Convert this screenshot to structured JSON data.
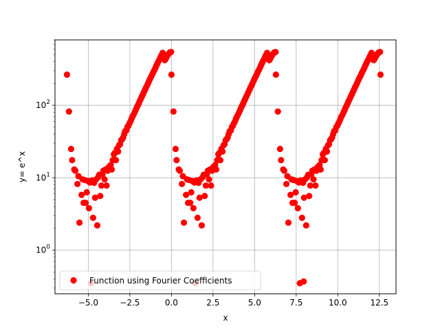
{
  "chart_data": {
    "type": "scatter",
    "title": "",
    "xlabel": "x",
    "ylabel": "y= e^x",
    "xlim": [
      -7.0,
      13.5
    ],
    "ylim": [
      0.25,
      800
    ],
    "yscale": "log",
    "grid": true,
    "x_ticks": [
      {
        "value": -5.0,
        "label": "−5.0"
      },
      {
        "value": -2.5,
        "label": "−2.5"
      },
      {
        "value": 0.0,
        "label": "0.0"
      },
      {
        "value": 2.5,
        "label": "2.5"
      },
      {
        "value": 5.0,
        "label": "5.0"
      },
      {
        "value": 7.5,
        "label": "7.5"
      },
      {
        "value": 10.0,
        "label": "10.0"
      },
      {
        "value": 12.5,
        "label": "12.5"
      }
    ],
    "y_ticks": [
      {
        "value": 1,
        "base": "10",
        "exp": "0"
      },
      {
        "value": 10,
        "base": "10",
        "exp": "1"
      },
      {
        "value": 100,
        "base": "10",
        "exp": "2"
      }
    ],
    "legend": {
      "position": "lower-left"
    },
    "series": [
      {
        "name": "Function using Fourier Coefficients",
        "color": "#ff0000",
        "marker": "circle",
        "points": [
          [
            -6.28,
            265
          ],
          [
            -6.16,
            82
          ],
          [
            -6.03,
            25
          ],
          [
            -5.97,
            17.5
          ],
          [
            -5.84,
            13
          ],
          [
            -5.78,
            12.5
          ],
          [
            -5.65,
            8.2
          ],
          [
            -5.59,
            10.5
          ],
          [
            -5.53,
            2.4
          ],
          [
            -5.4,
            5.8
          ],
          [
            -5.34,
            9.5
          ],
          [
            -5.28,
            4.5
          ],
          [
            -5.21,
            9.3
          ],
          [
            -5.15,
            4.5
          ],
          [
            -5.09,
            6.3
          ],
          [
            -5.03,
            9
          ],
          [
            -4.96,
            3.8
          ],
          [
            -4.9,
            8.6
          ],
          [
            -4.84,
            0.35
          ],
          [
            -4.78,
            9.2
          ],
          [
            -4.71,
            2.8
          ],
          [
            -4.65,
            8.5
          ],
          [
            -4.59,
            5.3
          ],
          [
            -4.53,
            9.5
          ],
          [
            -4.46,
            2.2
          ],
          [
            -4.4,
            10.2
          ],
          [
            -4.34,
            11
          ],
          [
            -4.28,
            5.6
          ],
          [
            -4.21,
            7.8
          ],
          [
            -4.15,
            11.2
          ],
          [
            -4.09,
            12.5
          ],
          [
            -4.02,
            9.5
          ],
          [
            -3.96,
            13
          ],
          [
            -3.9,
            7.8
          ],
          [
            -3.84,
            12.5
          ],
          [
            -3.78,
            14
          ],
          [
            -3.71,
            13.5
          ],
          [
            -3.65,
            15
          ],
          [
            -3.59,
            13
          ],
          [
            -3.53,
            17.5
          ],
          [
            -3.46,
            21
          ],
          [
            -3.4,
            22
          ],
          [
            -3.34,
            17.5
          ],
          [
            -3.28,
            25
          ],
          [
            -3.21,
            23
          ],
          [
            -3.15,
            28
          ],
          [
            -3.09,
            29
          ],
          [
            -3.02,
            33
          ],
          [
            -2.96,
            34
          ],
          [
            -2.9,
            36
          ],
          [
            -2.84,
            40
          ],
          [
            -2.78,
            44
          ],
          [
            -2.71,
            45
          ],
          [
            -2.65,
            50
          ],
          [
            -2.59,
            52
          ],
          [
            -2.53,
            56
          ],
          [
            -2.46,
            60
          ],
          [
            -2.4,
            65
          ],
          [
            -2.34,
            70
          ],
          [
            -2.28,
            74
          ],
          [
            -2.21,
            80
          ],
          [
            -2.15,
            86
          ],
          [
            -2.09,
            93
          ],
          [
            -2.02,
            100
          ],
          [
            -1.96,
            107
          ],
          [
            -1.9,
            115
          ],
          [
            -1.84,
            123
          ],
          [
            -1.78,
            132
          ],
          [
            -1.71,
            142
          ],
          [
            -1.65,
            153
          ],
          [
            -1.59,
            164
          ],
          [
            -1.53,
            176
          ],
          [
            -1.46,
            189
          ],
          [
            -1.4,
            203
          ],
          [
            -1.34,
            218
          ],
          [
            -1.28,
            233
          ],
          [
            -1.21,
            250
          ],
          [
            -1.15,
            268
          ],
          [
            -1.09,
            288
          ],
          [
            -1.02,
            308
          ],
          [
            -0.96,
            330
          ],
          [
            -0.9,
            355
          ],
          [
            -0.84,
            380
          ],
          [
            -0.78,
            405
          ],
          [
            -0.71,
            435
          ],
          [
            -0.65,
            465
          ],
          [
            -0.59,
            495
          ],
          [
            -0.53,
            530
          ],
          [
            -0.46,
            450
          ],
          [
            -0.4,
            420
          ],
          [
            -0.34,
            440
          ],
          [
            -0.28,
            470
          ],
          [
            -0.21,
            500
          ],
          [
            -0.15,
            520
          ],
          [
            -0.09,
            540
          ],
          [
            -0.02,
            545
          ],
          [
            0.0,
            265
          ],
          [
            0.12,
            82
          ],
          [
            0.25,
            25
          ],
          [
            0.31,
            17.5
          ],
          [
            0.44,
            13
          ],
          [
            0.5,
            12.5
          ],
          [
            0.63,
            8.2
          ],
          [
            0.69,
            10.5
          ],
          [
            0.75,
            2.4
          ],
          [
            0.88,
            5.8
          ],
          [
            0.94,
            9.5
          ],
          [
            1.0,
            4.5
          ],
          [
            1.07,
            9.3
          ],
          [
            1.13,
            4.5
          ],
          [
            1.19,
            6.3
          ],
          [
            1.25,
            9
          ],
          [
            1.32,
            3.8
          ],
          [
            1.38,
            8.6
          ],
          [
            1.44,
            0.35
          ],
          [
            1.5,
            9.2
          ],
          [
            1.57,
            2.8
          ],
          [
            1.63,
            8.5
          ],
          [
            1.69,
            5.3
          ],
          [
            1.75,
            9.5
          ],
          [
            1.82,
            2.2
          ],
          [
            1.88,
            10.2
          ],
          [
            1.94,
            11
          ],
          [
            2.0,
            5.6
          ],
          [
            2.07,
            7.8
          ],
          [
            2.13,
            11.2
          ],
          [
            2.19,
            12.5
          ],
          [
            2.26,
            9.5
          ],
          [
            2.32,
            13
          ],
          [
            2.38,
            7.8
          ],
          [
            2.44,
            12.5
          ],
          [
            2.5,
            14
          ],
          [
            2.57,
            13.5
          ],
          [
            2.63,
            15
          ],
          [
            2.69,
            13
          ],
          [
            2.75,
            17.5
          ],
          [
            2.82,
            21
          ],
          [
            2.88,
            22
          ],
          [
            2.94,
            17.5
          ],
          [
            3.0,
            25
          ],
          [
            3.07,
            23
          ],
          [
            3.13,
            28
          ],
          [
            3.19,
            29
          ],
          [
            3.26,
            33
          ],
          [
            3.32,
            34
          ],
          [
            3.38,
            36
          ],
          [
            3.44,
            40
          ],
          [
            3.5,
            44
          ],
          [
            3.57,
            45
          ],
          [
            3.63,
            50
          ],
          [
            3.69,
            52
          ],
          [
            3.75,
            56
          ],
          [
            3.82,
            60
          ],
          [
            3.88,
            65
          ],
          [
            3.94,
            70
          ],
          [
            4.0,
            74
          ],
          [
            4.07,
            80
          ],
          [
            4.13,
            86
          ],
          [
            4.19,
            93
          ],
          [
            4.26,
            100
          ],
          [
            4.32,
            107
          ],
          [
            4.38,
            115
          ],
          [
            4.44,
            123
          ],
          [
            4.5,
            132
          ],
          [
            4.57,
            142
          ],
          [
            4.63,
            153
          ],
          [
            4.69,
            164
          ],
          [
            4.75,
            176
          ],
          [
            4.82,
            189
          ],
          [
            4.88,
            203
          ],
          [
            4.94,
            218
          ],
          [
            5.0,
            233
          ],
          [
            5.07,
            250
          ],
          [
            5.13,
            268
          ],
          [
            5.19,
            288
          ],
          [
            5.26,
            308
          ],
          [
            5.32,
            330
          ],
          [
            5.38,
            355
          ],
          [
            5.44,
            380
          ],
          [
            5.5,
            405
          ],
          [
            5.57,
            435
          ],
          [
            5.63,
            465
          ],
          [
            5.69,
            495
          ],
          [
            5.75,
            530
          ],
          [
            5.82,
            450
          ],
          [
            5.88,
            420
          ],
          [
            5.94,
            440
          ],
          [
            6.0,
            470
          ],
          [
            6.07,
            500
          ],
          [
            6.13,
            520
          ],
          [
            6.19,
            540
          ],
          [
            6.26,
            545
          ],
          [
            6.28,
            265
          ],
          [
            6.4,
            82
          ],
          [
            6.53,
            25
          ],
          [
            6.59,
            17.5
          ],
          [
            6.72,
            13
          ],
          [
            6.78,
            12.5
          ],
          [
            6.91,
            8.2
          ],
          [
            6.97,
            10.5
          ],
          [
            7.03,
            2.4
          ],
          [
            7.16,
            5.8
          ],
          [
            7.22,
            9.5
          ],
          [
            7.28,
            4.5
          ],
          [
            7.35,
            9.3
          ],
          [
            7.41,
            4.5
          ],
          [
            7.47,
            6.3
          ],
          [
            7.53,
            9
          ],
          [
            7.6,
            3.8
          ],
          [
            7.66,
            8.6
          ],
          [
            7.72,
            0.35
          ],
          [
            7.78,
            9.2
          ],
          [
            7.85,
            2.8
          ],
          [
            7.91,
            8.5
          ],
          [
            7.97,
            5.3
          ],
          [
            8.03,
            9.5
          ],
          [
            8.1,
            2.2
          ],
          [
            8.16,
            10.2
          ],
          [
            8.22,
            11
          ],
          [
            8.28,
            5.6
          ],
          [
            8.35,
            7.8
          ],
          [
            8.41,
            11.2
          ],
          [
            8.47,
            12.5
          ],
          [
            8.54,
            9.5
          ],
          [
            8.6,
            13
          ],
          [
            8.66,
            7.8
          ],
          [
            8.72,
            12.5
          ],
          [
            8.78,
            14
          ],
          [
            8.85,
            13.5
          ],
          [
            8.91,
            15
          ],
          [
            8.97,
            13
          ],
          [
            9.03,
            17.5
          ],
          [
            9.1,
            21
          ],
          [
            9.16,
            22
          ],
          [
            9.22,
            17.5
          ],
          [
            9.28,
            25
          ],
          [
            9.35,
            23
          ],
          [
            9.41,
            28
          ],
          [
            9.47,
            29
          ],
          [
            9.54,
            33
          ],
          [
            9.6,
            34
          ],
          [
            9.66,
            36
          ],
          [
            9.72,
            40
          ],
          [
            9.78,
            44
          ],
          [
            9.85,
            45
          ],
          [
            9.91,
            50
          ],
          [
            9.97,
            52
          ],
          [
            10.03,
            56
          ],
          [
            10.1,
            60
          ],
          [
            10.16,
            65
          ],
          [
            10.22,
            70
          ],
          [
            10.28,
            74
          ],
          [
            10.35,
            80
          ],
          [
            10.41,
            86
          ],
          [
            10.47,
            93
          ],
          [
            10.54,
            100
          ],
          [
            10.6,
            107
          ],
          [
            10.66,
            115
          ],
          [
            10.72,
            123
          ],
          [
            10.78,
            132
          ],
          [
            10.85,
            142
          ],
          [
            10.91,
            153
          ],
          [
            10.97,
            164
          ],
          [
            11.03,
            176
          ],
          [
            11.1,
            189
          ],
          [
            11.16,
            203
          ],
          [
            11.22,
            218
          ],
          [
            11.28,
            233
          ],
          [
            11.35,
            250
          ],
          [
            11.41,
            268
          ],
          [
            11.47,
            288
          ],
          [
            11.54,
            308
          ],
          [
            11.6,
            330
          ],
          [
            11.66,
            355
          ],
          [
            11.72,
            380
          ],
          [
            11.78,
            405
          ],
          [
            11.85,
            435
          ],
          [
            11.91,
            465
          ],
          [
            11.97,
            495
          ],
          [
            12.03,
            530
          ],
          [
            12.1,
            450
          ],
          [
            12.16,
            420
          ],
          [
            12.22,
            440
          ],
          [
            12.28,
            470
          ],
          [
            12.35,
            500
          ],
          [
            12.41,
            520
          ],
          [
            12.47,
            540
          ],
          [
            12.54,
            545
          ],
          [
            12.57,
            265
          ],
          [
            7.95,
            0.37
          ]
        ]
      }
    ]
  }
}
